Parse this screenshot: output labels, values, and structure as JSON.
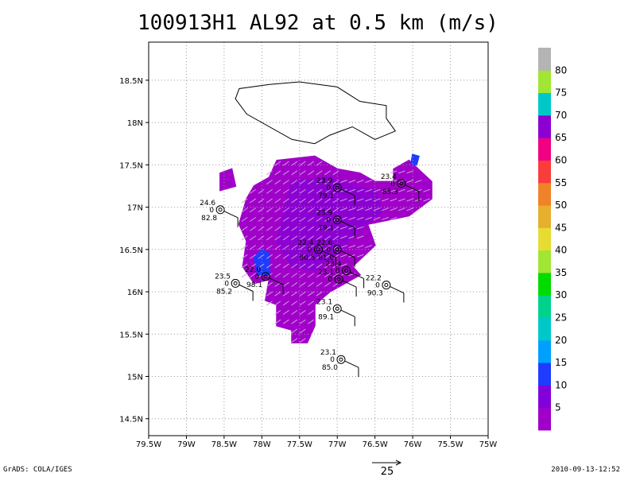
{
  "title": "100913H1 AL92 at 0.5 km (m/s)",
  "footer": {
    "left": "GrADS: COLA/IGES",
    "right": "2010-09-13-12:52",
    "vector_scale": "25"
  },
  "chart_data": {
    "type": "heatmap",
    "title": "100913H1 AL92 at 0.5 km (m/s)",
    "xlim": [
      -79.5,
      -75.0
    ],
    "ylim": [
      14.3,
      18.95
    ],
    "x_ticks": [
      {
        "v": -79.5,
        "l": "79.5W"
      },
      {
        "v": -79.0,
        "l": "79W"
      },
      {
        "v": -78.5,
        "l": "78.5W"
      },
      {
        "v": -78.0,
        "l": "78W"
      },
      {
        "v": -77.5,
        "l": "77.5W"
      },
      {
        "v": -77.0,
        "l": "77W"
      },
      {
        "v": -76.5,
        "l": "76.5W"
      },
      {
        "v": -76.0,
        "l": "76W"
      },
      {
        "v": -75.5,
        "l": "75.5W"
      },
      {
        "v": -75.0,
        "l": "75W"
      }
    ],
    "y_ticks": [
      {
        "v": 14.5,
        "l": "14.5N"
      },
      {
        "v": 15.0,
        "l": "15N"
      },
      {
        "v": 15.5,
        "l": "15.5N"
      },
      {
        "v": 16.0,
        "l": "16N"
      },
      {
        "v": 16.5,
        "l": "16.5N"
      },
      {
        "v": 17.0,
        "l": "17N"
      },
      {
        "v": 17.5,
        "l": "17.5N"
      },
      {
        "v": 18.0,
        "l": "18N"
      },
      {
        "v": 18.5,
        "l": "18.5N"
      }
    ],
    "grid": true,
    "colorbar": {
      "levels": [
        5,
        10,
        15,
        20,
        25,
        30,
        35,
        40,
        45,
        50,
        55,
        60,
        65,
        70,
        75,
        80
      ],
      "colors": [
        "#a000c8",
        "#8200dc",
        "#1e3cff",
        "#00a0ff",
        "#00c8c8",
        "#00d28c",
        "#00dc00",
        "#a0e632",
        "#e6dc32",
        "#e6af2d",
        "#f08228",
        "#fa3c3c",
        "#f00082",
        "#8c00d2",
        "#00c8c8",
        "#a0e632",
        "#b4b4b4"
      ],
      "labels": [
        "5",
        "10",
        "15",
        "20",
        "25",
        "30",
        "35",
        "40",
        "45",
        "50",
        "55",
        "60",
        "65",
        "70",
        "75",
        "80"
      ]
    },
    "coastline": [
      [
        -77.9,
        18.45
      ],
      [
        -77.5,
        18.48
      ],
      [
        -77.0,
        18.42
      ],
      [
        -76.7,
        18.25
      ],
      [
        -76.35,
        18.2
      ],
      [
        -76.35,
        18.05
      ],
      [
        -76.23,
        17.9
      ],
      [
        -76.5,
        17.8
      ],
      [
        -76.8,
        17.95
      ],
      [
        -77.1,
        17.85
      ],
      [
        -77.3,
        17.75
      ],
      [
        -77.6,
        17.8
      ],
      [
        -78.2,
        18.1
      ],
      [
        -78.35,
        18.28
      ],
      [
        -78.3,
        18.4
      ],
      [
        -77.9,
        18.45
      ]
    ],
    "wind_regions": [
      {
        "speed": 6,
        "color": "#a000c8",
        "polygon": [
          [
            -77.8,
            17.55
          ],
          [
            -77.3,
            17.6
          ],
          [
            -77.0,
            17.45
          ],
          [
            -76.7,
            17.4
          ],
          [
            -76.5,
            17.3
          ],
          [
            -76.25,
            17.3
          ],
          [
            -76.25,
            17.45
          ],
          [
            -76.05,
            17.55
          ],
          [
            -75.75,
            17.3
          ],
          [
            -75.75,
            17.1
          ],
          [
            -76.05,
            16.9
          ],
          [
            -76.6,
            16.8
          ],
          [
            -76.5,
            16.55
          ],
          [
            -76.8,
            16.3
          ],
          [
            -76.7,
            16.2
          ],
          [
            -77.1,
            16.0
          ],
          [
            -77.3,
            15.85
          ],
          [
            -77.3,
            15.6
          ],
          [
            -77.4,
            15.4
          ],
          [
            -77.6,
            15.4
          ],
          [
            -77.6,
            15.55
          ],
          [
            -77.8,
            15.6
          ],
          [
            -77.8,
            15.85
          ],
          [
            -77.95,
            15.9
          ],
          [
            -77.9,
            16.15
          ],
          [
            -78.1,
            16.1
          ],
          [
            -78.25,
            16.3
          ],
          [
            -78.2,
            16.6
          ],
          [
            -78.3,
            16.8
          ],
          [
            -78.2,
            17.1
          ],
          [
            -78.1,
            17.25
          ],
          [
            -77.9,
            17.35
          ]
        ]
      },
      {
        "speed": 6,
        "color": "#a000c8",
        "polygon": [
          [
            -78.55,
            17.4
          ],
          [
            -78.4,
            17.45
          ],
          [
            -78.35,
            17.25
          ],
          [
            -78.55,
            17.2
          ]
        ]
      },
      {
        "speed": 8,
        "color": "#8c00d2",
        "polygon": [
          [
            -77.6,
            17.3
          ],
          [
            -77.1,
            17.35
          ],
          [
            -76.8,
            17.25
          ],
          [
            -76.5,
            17.2
          ],
          [
            -76.4,
            16.95
          ],
          [
            -76.7,
            16.75
          ],
          [
            -77.0,
            16.45
          ],
          [
            -77.3,
            16.25
          ],
          [
            -77.6,
            16.3
          ],
          [
            -77.8,
            16.6
          ],
          [
            -77.7,
            16.95
          ]
        ]
      },
      {
        "speed": 12,
        "color": "#1e3cff",
        "polygon": [
          [
            -78.0,
            16.5
          ],
          [
            -77.9,
            16.45
          ],
          [
            -77.9,
            16.2
          ],
          [
            -78.05,
            16.2
          ],
          [
            -78.1,
            16.4
          ]
        ]
      },
      {
        "speed": 12,
        "color": "#1e3cff",
        "polygon": [
          [
            -76.0,
            17.62
          ],
          [
            -75.92,
            17.6
          ],
          [
            -75.95,
            17.5
          ],
          [
            -76.02,
            17.52
          ]
        ]
      }
    ],
    "stations": [
      {
        "lon": -77.0,
        "lat": 17.23,
        "t": "23.9",
        "p": "79.1"
      },
      {
        "lon": -76.15,
        "lat": 17.28,
        "t": "23.4",
        "p": "85.3"
      },
      {
        "lon": -78.55,
        "lat": 16.97,
        "t": "24.6",
        "p": "82.8"
      },
      {
        "lon": -77.0,
        "lat": 16.85,
        "t": "23.9",
        "p": "79.1"
      },
      {
        "lon": -77.25,
        "lat": 16.5,
        "t": "22.4",
        "p": "80.5"
      },
      {
        "lon": -77.0,
        "lat": 16.5,
        "t": "22.6",
        "p": "81.0"
      },
      {
        "lon": -76.88,
        "lat": 16.25,
        "t": "23.4",
        "p": ""
      },
      {
        "lon": -77.95,
        "lat": 16.18,
        "t": "22.0",
        "p": "98.1"
      },
      {
        "lon": -78.35,
        "lat": 16.1,
        "t": "23.5",
        "p": "85.2"
      },
      {
        "lon": -76.98,
        "lat": 16.15,
        "t": "23.1",
        "p": ""
      },
      {
        "lon": -76.35,
        "lat": 16.08,
        "t": "22.2",
        "p": "90.3"
      },
      {
        "lon": -77.0,
        "lat": 15.8,
        "t": "23.1",
        "p": "89.1"
      },
      {
        "lon": -76.95,
        "lat": 15.2,
        "t": "23.1",
        "p": "85.0"
      }
    ]
  }
}
